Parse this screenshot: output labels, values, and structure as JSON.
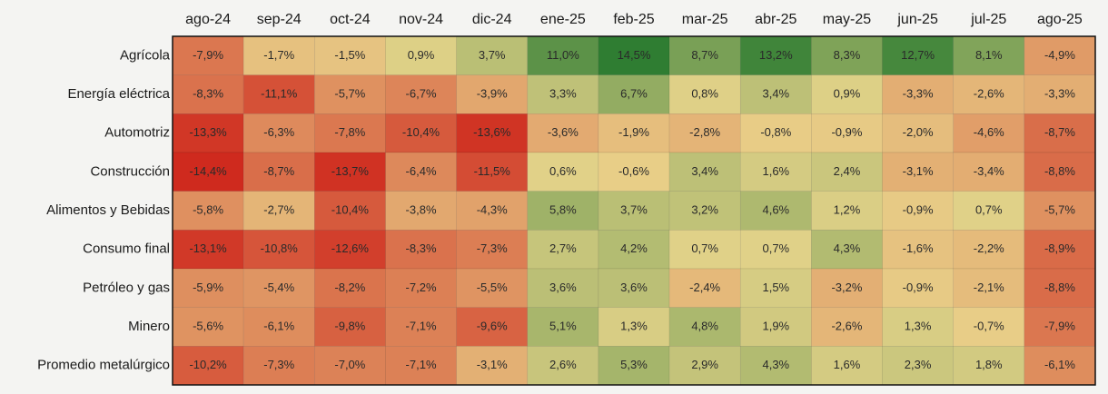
{
  "chart_data": {
    "type": "heatmap",
    "categories": [
      "ago-24",
      "sep-24",
      "oct-24",
      "nov-24",
      "dic-24",
      "ene-25",
      "feb-25",
      "mar-25",
      "abr-25",
      "may-25",
      "jun-25",
      "jul-25",
      "ago-25"
    ],
    "color_scale": [
      "#cf2a1e",
      "#e9d58c",
      "#2f7d32"
    ],
    "series": [
      {
        "name": "Agrícola",
        "values": [
          -7.9,
          -1.7,
          -1.5,
          0.9,
          3.7,
          11.0,
          14.5,
          8.7,
          13.2,
          8.3,
          12.7,
          8.1,
          -4.9
        ],
        "value_labels": [
          "-7,9%",
          "-1,7%",
          "-1,5%",
          "0,9%",
          "3,7%",
          "11,0%",
          "14,5%",
          "8,7%",
          "13,2%",
          "8,3%",
          "12,7%",
          "8,1%",
          "-4,9%"
        ]
      },
      {
        "name": "Energía eléctrica",
        "values": [
          -8.3,
          -11.1,
          -5.7,
          -6.7,
          -3.9,
          3.3,
          6.7,
          0.8,
          3.4,
          0.9,
          -3.3,
          -2.6,
          -3.3
        ],
        "value_labels": [
          "-8,3%",
          "-11,1%",
          "-5,7%",
          "-6,7%",
          "-3,9%",
          "3,3%",
          "6,7%",
          "0,8%",
          "3,4%",
          "0,9%",
          "-3,3%",
          "-2,6%",
          "-3,3%"
        ]
      },
      {
        "name": "Automotriz",
        "values": [
          -13.3,
          -6.3,
          -7.8,
          -10.4,
          -13.6,
          -3.6,
          -1.9,
          -2.8,
          -0.8,
          -0.9,
          -2.0,
          -4.6,
          -8.7
        ],
        "value_labels": [
          "-13,3%",
          "-6,3%",
          "-7,8%",
          "-10,4%",
          "-13,6%",
          "-3,6%",
          "-1,9%",
          "-2,8%",
          "-0,8%",
          "-0,9%",
          "-2,0%",
          "-4,6%",
          "-8,7%"
        ]
      },
      {
        "name": "Construcción",
        "values": [
          -14.4,
          -8.7,
          -13.7,
          -6.4,
          -11.5,
          0.6,
          -0.6,
          3.4,
          1.6,
          2.4,
          -3.1,
          -3.4,
          -8.8
        ],
        "value_labels": [
          "-14,4%",
          "-8,7%",
          "-13,7%",
          "-6,4%",
          "-11,5%",
          "0,6%",
          "-0,6%",
          "3,4%",
          "1,6%",
          "2,4%",
          "-3,1%",
          "-3,4%",
          "-8,8%"
        ]
      },
      {
        "name": "Alimentos y Bebidas",
        "values": [
          -5.8,
          -2.7,
          -10.4,
          -3.8,
          -4.3,
          5.8,
          3.7,
          3.2,
          4.6,
          1.2,
          -0.9,
          0.7,
          -5.7
        ],
        "value_labels": [
          "-5,8%",
          "-2,7%",
          "-10,4%",
          "-3,8%",
          "-4,3%",
          "5,8%",
          "3,7%",
          "3,2%",
          "4,6%",
          "1,2%",
          "-0,9%",
          "0,7%",
          "-5,7%"
        ]
      },
      {
        "name": "Consumo final",
        "values": [
          -13.1,
          -10.8,
          -12.6,
          -8.3,
          -7.3,
          2.7,
          4.2,
          0.7,
          0.7,
          4.3,
          -1.6,
          -2.2,
          -8.9
        ],
        "value_labels": [
          "-13,1%",
          "-10,8%",
          "-12,6%",
          "-8,3%",
          "-7,3%",
          "2,7%",
          "4,2%",
          "0,7%",
          "0,7%",
          "4,3%",
          "-1,6%",
          "-2,2%",
          "-8,9%"
        ]
      },
      {
        "name": "Petróleo y gas",
        "values": [
          -5.9,
          -5.4,
          -8.2,
          -7.2,
          -5.5,
          3.6,
          3.6,
          -2.4,
          1.5,
          -3.2,
          -0.9,
          -2.1,
          -8.8
        ],
        "value_labels": [
          "-5,9%",
          "-5,4%",
          "-8,2%",
          "-7,2%",
          "-5,5%",
          "3,6%",
          "3,6%",
          "-2,4%",
          "1,5%",
          "-3,2%",
          "-0,9%",
          "-2,1%",
          "-8,8%"
        ]
      },
      {
        "name": "Minero",
        "values": [
          -5.6,
          -6.1,
          -9.8,
          -7.1,
          -9.6,
          5.1,
          1.3,
          4.8,
          1.9,
          -2.6,
          1.3,
          -0.7,
          -7.9
        ],
        "value_labels": [
          "-5,6%",
          "-6,1%",
          "-9,8%",
          "-7,1%",
          "-9,6%",
          "5,1%",
          "1,3%",
          "4,8%",
          "1,9%",
          "-2,6%",
          "1,3%",
          "-0,7%",
          "-7,9%"
        ]
      },
      {
        "name": "Promedio metalúrgico",
        "values": [
          -10.2,
          -7.3,
          -7.0,
          -7.1,
          -3.1,
          2.6,
          5.3,
          2.9,
          4.3,
          1.6,
          2.3,
          1.8,
          -6.1
        ],
        "value_labels": [
          "-10,2%",
          "-7,3%",
          "-7,0%",
          "-7,1%",
          "-3,1%",
          "2,6%",
          "5,3%",
          "2,9%",
          "4,3%",
          "1,6%",
          "2,3%",
          "1,8%",
          "-6,1%"
        ]
      }
    ]
  }
}
